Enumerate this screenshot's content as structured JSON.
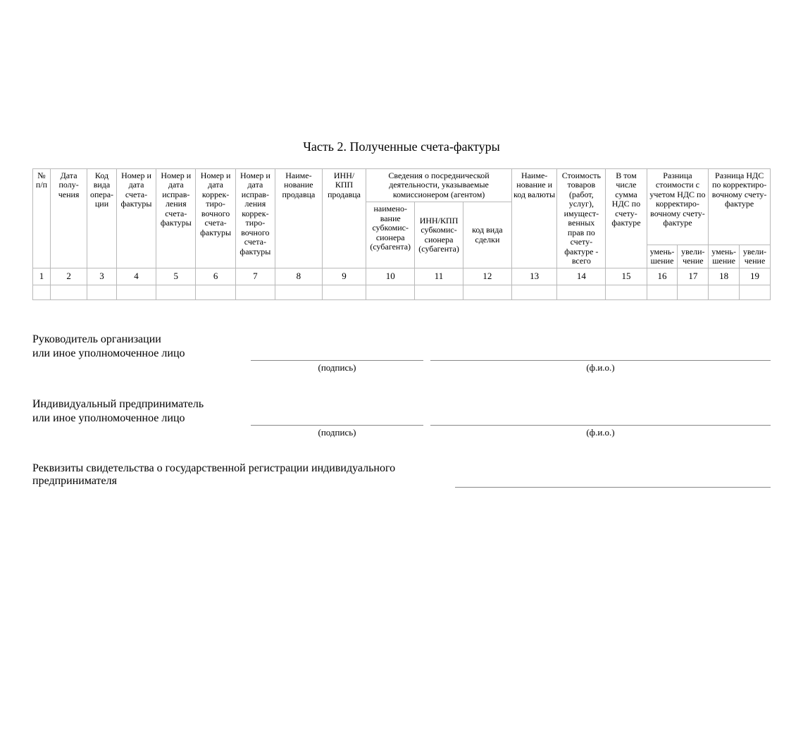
{
  "title": "Часть 2. Полученные счета-фактуры",
  "headers": {
    "h1": "№ п/п",
    "h2": "Дата полу­чения",
    "h3": "Код вида опера­ции",
    "h4": "Номер и дата счета-фактуры",
    "h5": "Номер и дата исправ­ления счета-фактуры",
    "h6": "Номер и дата коррек­тиро­вочного счета-фактуры",
    "h7": "Номер и дата исправ­ления коррек­тиро­вочного счета-фактуры",
    "h8": "Наиме­нование продавца",
    "h9": "ИНН/ КПП продавца",
    "h10": "Сведения о посреднической деятельности, указываемые комиссионером (агентом)",
    "h10a": "наимено­вание субкомис­сионера (субагента)",
    "h10b": "ИНН/КПП субкомис­сионера (субагента)",
    "h10c": "код вида сделки",
    "h13": "Наиме­нование и код валюты",
    "h14": "Стоимость товаров (работ, услуг), имущест­венных прав по счету-фактуре - всего",
    "h15": "В том числе сумма НДС по счету-фактуре",
    "h16": "Разница стоимости с учетом НДС по корректиро­вочному счету-фактуре",
    "h18": "Разница НДС по корректиро­вочному счету-фактуре",
    "dec": "умень­шение",
    "inc": "увели­чение"
  },
  "colnums": [
    "1",
    "2",
    "3",
    "4",
    "5",
    "6",
    "7",
    "8",
    "9",
    "10",
    "11",
    "12",
    "13",
    "14",
    "15",
    "16",
    "17",
    "18",
    "19"
  ],
  "sig": {
    "org1": "Руководитель организации",
    "org2": "или иное уполномоченное лицо",
    "ip1": "Индивидуальный предприниматель",
    "ip2": "или иное уполномоченное лицо",
    "sign_caption": "(подпись)",
    "fio_caption": "(ф.и.о.)",
    "requisites": "Реквизиты свидетельства о государственной регистрации индивидуального предпринимателя"
  }
}
